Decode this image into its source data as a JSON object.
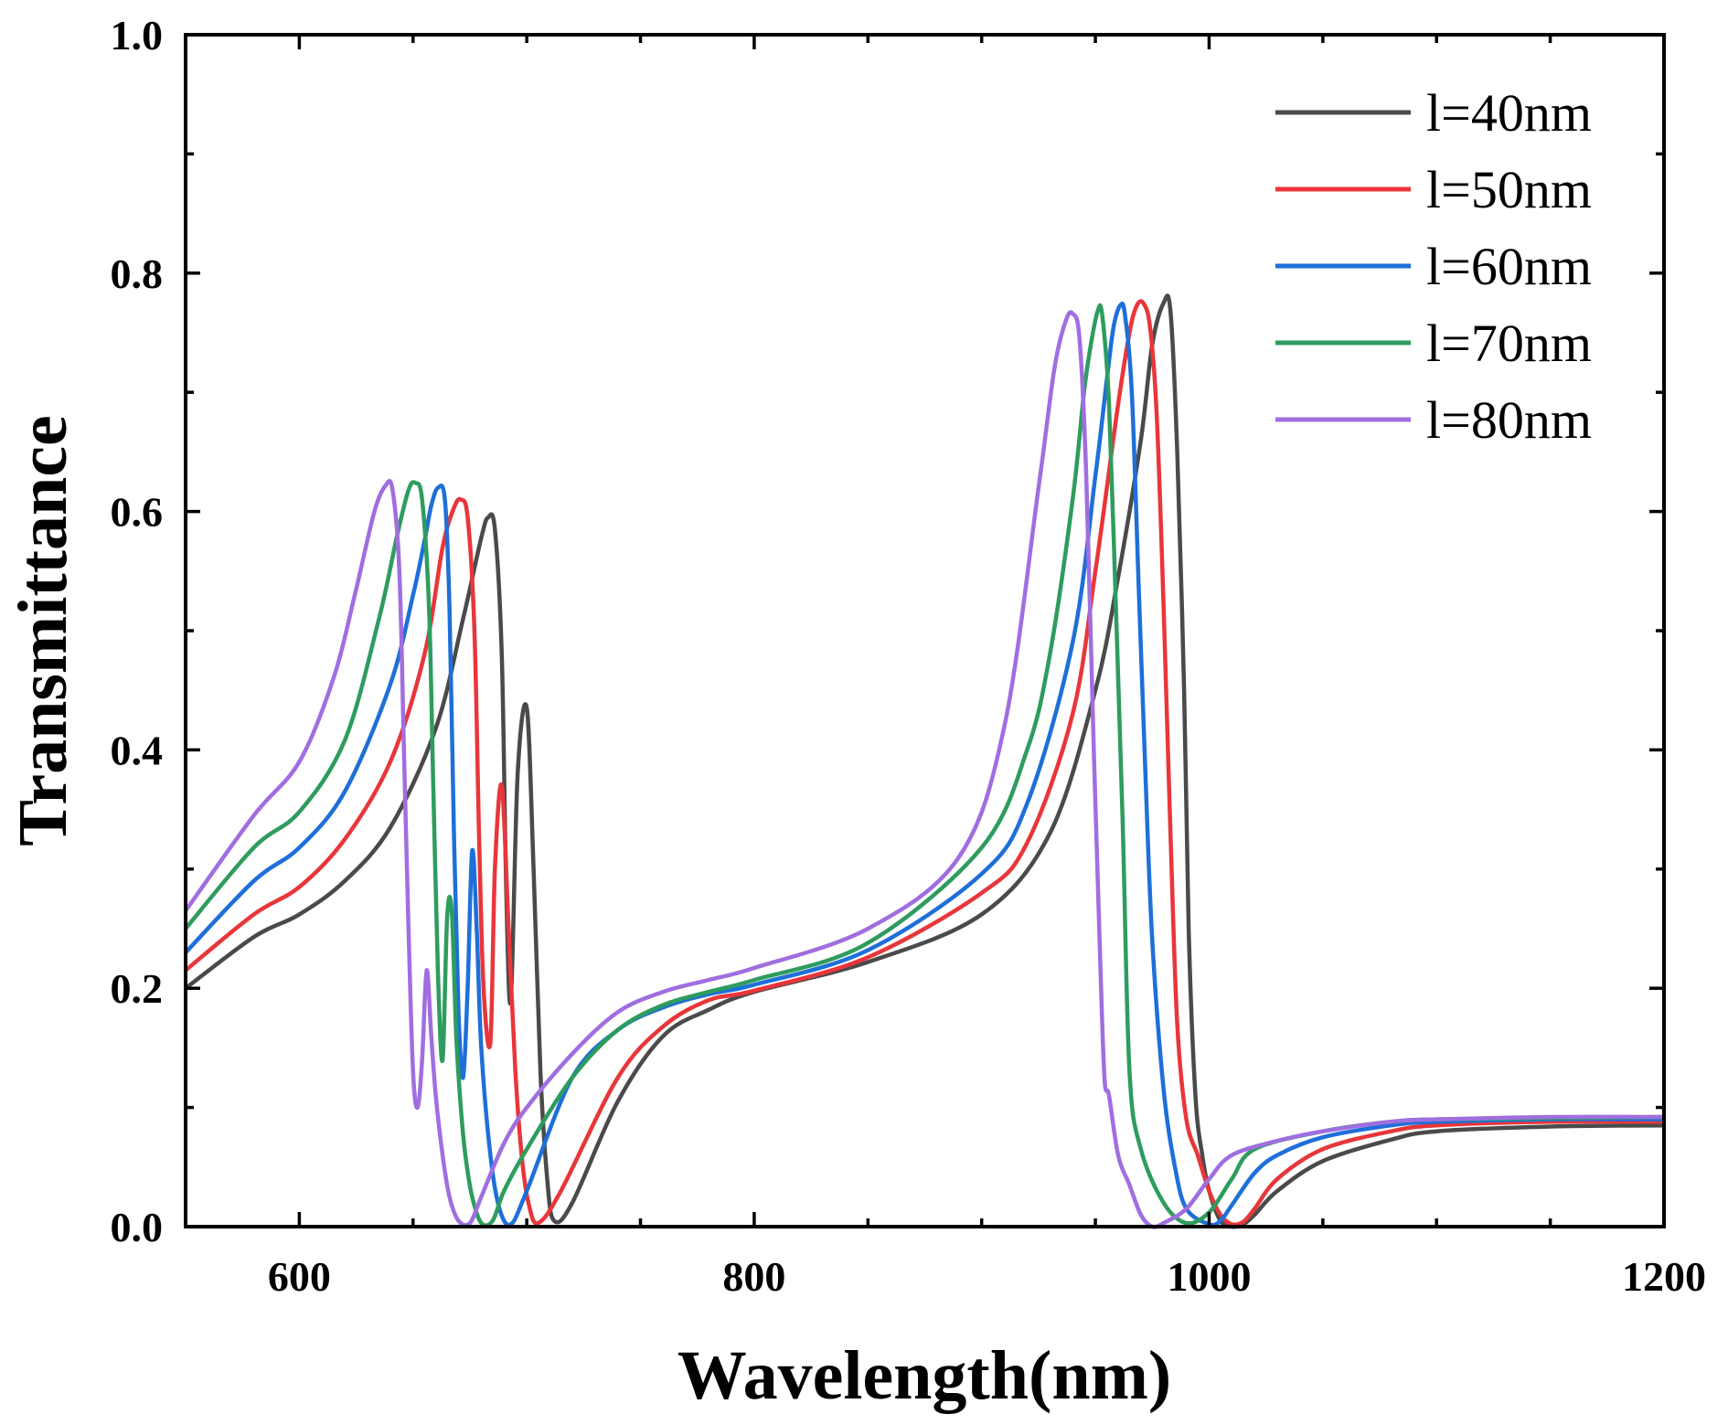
{
  "chart_data": {
    "type": "line",
    "title": "",
    "xlabel": "Wavelength(nm)",
    "ylabel": "Transmittance",
    "xlim": [
      550,
      1200
    ],
    "ylim": [
      0.0,
      1.0
    ],
    "xticks": [
      600,
      800,
      1000,
      1200
    ],
    "xtick_labels": [
      "600",
      "800",
      "1000",
      "1200"
    ],
    "yticks": [
      0.0,
      0.2,
      0.4,
      0.6,
      0.8,
      1.0
    ],
    "ytick_labels": [
      "0.0",
      "0.2",
      "0.4",
      "0.6",
      "0.8",
      "1.0"
    ],
    "grid": false,
    "legend_position": "top-right",
    "series": [
      {
        "name": "l=40nm",
        "color": "#4a4a4a",
        "x": [
          550,
          580,
          600,
          620,
          640,
          660,
          672,
          680,
          683,
          686,
          689,
          691,
          693,
          696,
          700,
          703,
          706,
          709,
          712,
          720,
          740,
          760,
          780,
          800,
          850,
          900,
          930,
          950,
          960,
          970,
          975,
          980,
          983,
          986,
          989,
          991,
          994,
          997,
          1000,
          1005,
          1010,
          1015,
          1020,
          1030,
          1050,
          1080,
          1100,
          1150,
          1200
        ],
        "y": [
          0.2,
          0.243,
          0.262,
          0.29,
          0.335,
          0.418,
          0.51,
          0.578,
          0.595,
          0.585,
          0.48,
          0.28,
          0.19,
          0.38,
          0.435,
          0.3,
          0.13,
          0.04,
          0.005,
          0.02,
          0.105,
          0.16,
          0.182,
          0.197,
          0.222,
          0.262,
          0.33,
          0.45,
          0.545,
          0.66,
          0.74,
          0.775,
          0.768,
          0.65,
          0.45,
          0.25,
          0.11,
          0.06,
          0.03,
          0.005,
          0.0,
          0.002,
          0.01,
          0.03,
          0.055,
          0.073,
          0.08,
          0.084,
          0.085
        ]
      },
      {
        "name": "l=50nm",
        "color": "#e8363a",
        "x": [
          550,
          580,
          600,
          620,
          640,
          655,
          663,
          668,
          671,
          674,
          677,
          679,
          681,
          684,
          686,
          689,
          692,
          695,
          698,
          701,
          705,
          715,
          740,
          760,
          780,
          800,
          850,
          900,
          920,
          940,
          950,
          960,
          965,
          968,
          971,
          974,
          977,
          980,
          983,
          986,
          990,
          995,
          1000,
          1005,
          1010,
          1015,
          1020,
          1030,
          1050,
          1080,
          1100,
          1150,
          1200
        ],
        "y": [
          0.215,
          0.262,
          0.285,
          0.325,
          0.39,
          0.48,
          0.57,
          0.603,
          0.61,
          0.595,
          0.5,
          0.33,
          0.2,
          0.155,
          0.3,
          0.37,
          0.25,
          0.13,
          0.055,
          0.018,
          0.003,
          0.03,
          0.125,
          0.168,
          0.19,
          0.198,
          0.226,
          0.28,
          0.322,
          0.43,
          0.55,
          0.69,
          0.75,
          0.772,
          0.775,
          0.755,
          0.68,
          0.52,
          0.33,
          0.17,
          0.09,
          0.06,
          0.03,
          0.01,
          0.002,
          0.004,
          0.015,
          0.04,
          0.065,
          0.08,
          0.085,
          0.088,
          0.088
        ]
      },
      {
        "name": "l=60nm",
        "color": "#1e6fd9",
        "x": [
          550,
          580,
          600,
          620,
          640,
          650,
          655,
          658,
          661,
          664,
          666,
          668,
          670,
          672,
          674,
          676,
          678,
          680,
          684,
          688,
          693,
          700,
          720,
          740,
          760,
          780,
          800,
          850,
          900,
          920,
          940,
          950,
          955,
          958,
          961,
          963,
          966,
          969,
          972,
          975,
          980,
          985,
          990,
          1000,
          1005,
          1010,
          1020,
          1030,
          1050,
          1080,
          1100,
          1150,
          1200
        ],
        "y": [
          0.23,
          0.29,
          0.318,
          0.365,
          0.455,
          0.53,
          0.575,
          0.605,
          0.62,
          0.61,
          0.52,
          0.33,
          0.18,
          0.125,
          0.2,
          0.315,
          0.25,
          0.15,
          0.06,
          0.015,
          0.002,
          0.03,
          0.125,
          0.165,
          0.184,
          0.195,
          0.203,
          0.232,
          0.296,
          0.355,
          0.49,
          0.63,
          0.71,
          0.755,
          0.773,
          0.765,
          0.7,
          0.54,
          0.38,
          0.24,
          0.115,
          0.05,
          0.015,
          0.002,
          0.005,
          0.018,
          0.045,
          0.06,
          0.075,
          0.085,
          0.088,
          0.09,
          0.09
        ]
      },
      {
        "name": "l=70nm",
        "color": "#2e9c5e",
        "x": [
          550,
          580,
          600,
          620,
          635,
          643,
          648,
          651,
          654,
          657,
          659,
          661,
          663,
          665,
          667,
          669,
          671,
          673,
          676,
          680,
          685,
          690,
          700,
          720,
          740,
          760,
          780,
          800,
          850,
          900,
          920,
          930,
          940,
          945,
          948,
          951,
          953,
          956,
          959,
          962,
          965,
          970,
          980,
          990,
          1000,
          1010,
          1020,
          1050,
          1080,
          1100,
          1150,
          1200
        ],
        "y": [
          0.25,
          0.318,
          0.348,
          0.408,
          0.51,
          0.58,
          0.618,
          0.624,
          0.61,
          0.52,
          0.36,
          0.21,
          0.14,
          0.26,
          0.265,
          0.16,
          0.1,
          0.06,
          0.025,
          0.003,
          0.005,
          0.03,
          0.065,
          0.125,
          0.165,
          0.186,
          0.197,
          0.207,
          0.238,
          0.318,
          0.4,
          0.48,
          0.61,
          0.7,
          0.74,
          0.768,
          0.765,
          0.69,
          0.52,
          0.34,
          0.13,
          0.065,
          0.02,
          0.003,
          0.012,
          0.04,
          0.065,
          0.08,
          0.088,
          0.09,
          0.091,
          0.092
        ]
      },
      {
        "name": "l=80nm",
        "color": "#a06ee0",
        "x": [
          550,
          580,
          600,
          615,
          625,
          633,
          638,
          641,
          644,
          646,
          648,
          650,
          652,
          654,
          656,
          658,
          660,
          663,
          666,
          670,
          675,
          680,
          690,
          700,
          720,
          740,
          760,
          780,
          800,
          850,
          890,
          910,
          925,
          932,
          937,
          940,
          943,
          946,
          949,
          952,
          954,
          956,
          960,
          965,
          970,
          975,
          980,
          990,
          1000,
          1010,
          1030,
          1050,
          1080,
          1100,
          1150,
          1200
        ],
        "y": [
          0.265,
          0.345,
          0.39,
          0.46,
          0.535,
          0.6,
          0.622,
          0.618,
          0.55,
          0.4,
          0.25,
          0.13,
          0.1,
          0.14,
          0.215,
          0.16,
          0.11,
          0.06,
          0.025,
          0.005,
          0.003,
          0.025,
          0.07,
          0.1,
          0.145,
          0.18,
          0.197,
          0.207,
          0.217,
          0.25,
          0.31,
          0.42,
          0.62,
          0.72,
          0.76,
          0.766,
          0.745,
          0.63,
          0.42,
          0.23,
          0.125,
          0.11,
          0.06,
          0.035,
          0.01,
          0.0,
          0.003,
          0.015,
          0.04,
          0.06,
          0.072,
          0.08,
          0.088,
          0.09,
          0.092,
          0.092
        ]
      }
    ]
  }
}
